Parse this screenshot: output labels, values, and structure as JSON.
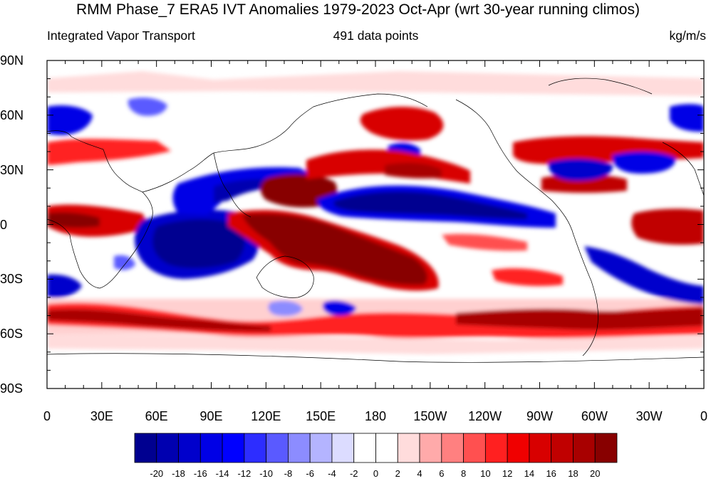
{
  "title": "RMM Phase_7 ERA5 IVT Anomalies 1979-2023 Oct-Apr (wrt 30-year running climos)",
  "subtitle_left": "Integrated Vapor Transport",
  "subtitle_center": "491 data points",
  "subtitle_right": "kg/m/s",
  "lat_labels": [
    "90N",
    "60N",
    "30N",
    "0",
    "30S",
    "60S",
    "90S"
  ],
  "lon_labels": [
    "0",
    "30E",
    "60E",
    "90E",
    "120E",
    "150E",
    "180",
    "150W",
    "120W",
    "90W",
    "60W",
    "30W",
    "0"
  ],
  "colorbar": {
    "labels": [
      "-20",
      "-18",
      "-16",
      "-14",
      "-12",
      "-10",
      "-8",
      "-6",
      "-4",
      "-2",
      "0",
      "2",
      "4",
      "6",
      "8",
      "10",
      "12",
      "14",
      "16",
      "18",
      "20"
    ],
    "colors": [
      "#000090",
      "#0000b0",
      "#0000cc",
      "#0000e6",
      "#0000ff",
      "#2d2dff",
      "#5a5aff",
      "#8c8cff",
      "#b4b4ff",
      "#dcdcff",
      "#ffffff",
      "#ffffff",
      "#ffdcdc",
      "#ffaaaa",
      "#ff8080",
      "#ff5050",
      "#ff2020",
      "#f00000",
      "#d80000",
      "#c00000",
      "#a80000",
      "#880000"
    ]
  }
}
